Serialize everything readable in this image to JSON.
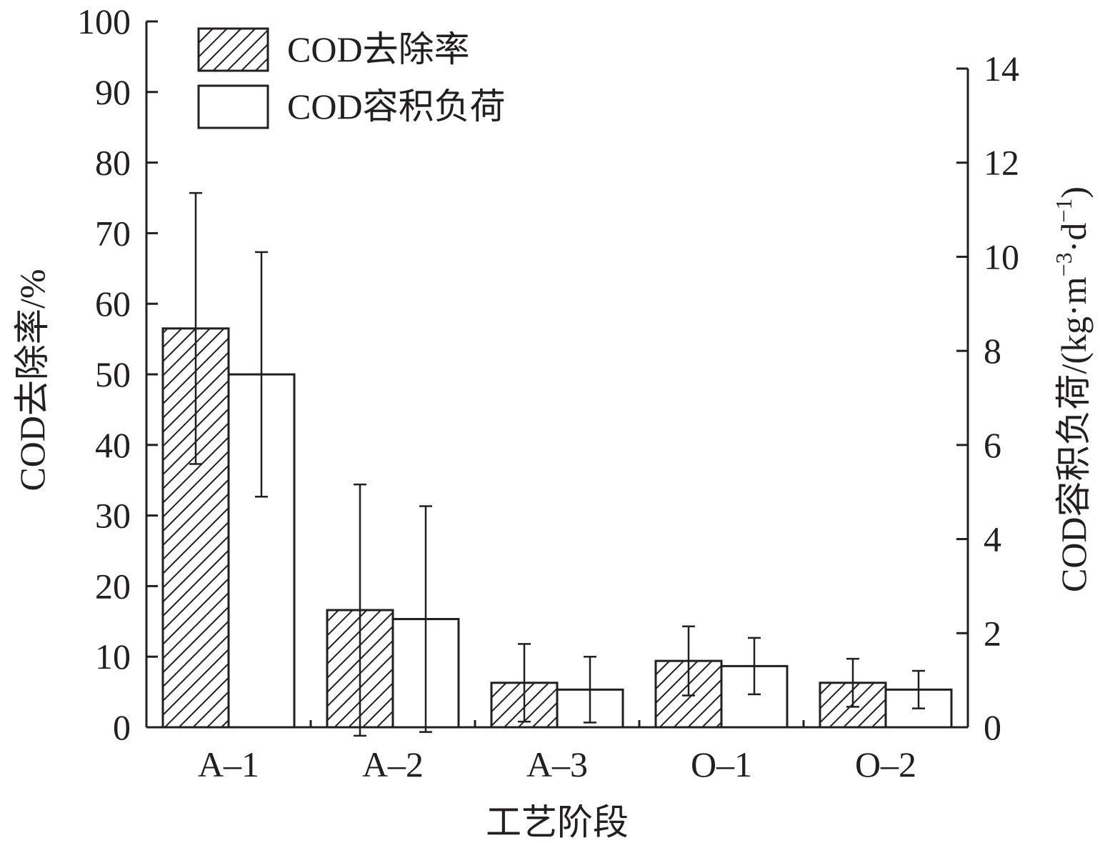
{
  "chart_data": {
    "type": "bar",
    "categories": [
      "A–1",
      "A–2",
      "A–3",
      "O–1",
      "O–2"
    ],
    "xlabel": "工艺阶段",
    "ylabel_left": "COD去除率/%",
    "ylabel_right_main": "COD容积负荷/(kg·m",
    "ylabel_right_sup1": "−3",
    "ylabel_right_mid": "·d",
    "ylabel_right_sup2": "−1",
    "ylabel_right_end": ")",
    "y_left": {
      "min": 0,
      "max": 100,
      "ticks": [
        0,
        10,
        20,
        30,
        40,
        50,
        60,
        70,
        80,
        90,
        100
      ]
    },
    "y_right": {
      "min": 0,
      "max": 14,
      "ticks": [
        0,
        2,
        4,
        6,
        8,
        10,
        12,
        14
      ]
    },
    "legend_position": "top-left",
    "series": [
      {
        "name": "COD去除率",
        "axis": "left",
        "pattern": "hatched",
        "values": [
          56.5,
          16.6,
          6.3,
          9.4,
          6.3
        ],
        "errors": [
          19.2,
          17.8,
          5.5,
          4.9,
          3.4
        ]
      },
      {
        "name": "COD容积负荷",
        "axis": "right",
        "pattern": "open",
        "values": [
          7.5,
          2.3,
          0.8,
          1.3,
          0.8
        ],
        "errors": [
          2.6,
          2.4,
          0.7,
          0.6,
          0.4
        ]
      }
    ],
    "colors": {
      "ink": "#231f20",
      "background": "#ffffff"
    }
  }
}
